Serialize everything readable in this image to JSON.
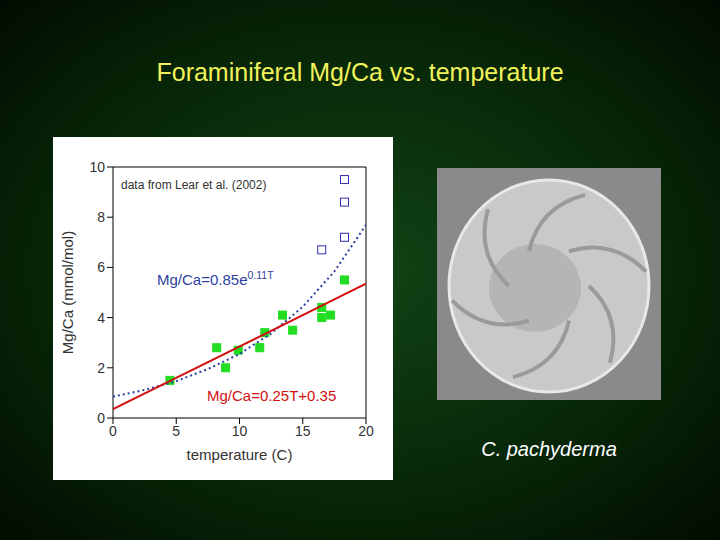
{
  "chart_data": {
    "type": "scatter",
    "title": "Foraminiferal Mg/Ca vs. temperature",
    "x_label": "temperature (C)",
    "y_label": "Mg/Ca (mmol/mol)",
    "annotations": [
      "data from Lear et al. (2002)"
    ],
    "xlim": [
      0,
      20
    ],
    "ylim": [
      0,
      10
    ],
    "xticks": [
      0,
      5,
      10,
      15,
      20
    ],
    "yticks": [
      0,
      2,
      4,
      6,
      8,
      10
    ],
    "grid": false,
    "series": [
      {
        "type": "scatter",
        "marker": "square",
        "color": "#22dd22",
        "x": [
          4.5,
          8.2,
          8.9,
          9.9,
          11.6,
          12.0,
          13.4,
          14.2,
          16.5,
          16.5,
          17.2,
          18.3
        ],
        "values": [
          1.5,
          2.8,
          2.0,
          2.7,
          2.8,
          3.4,
          4.1,
          3.5,
          4.4,
          4.0,
          4.1,
          5.5
        ]
      },
      {
        "type": "scatter",
        "marker": "open_square",
        "color": "#3030b0",
        "x": [
          18.3,
          18.3,
          18.3,
          16.5
        ],
        "values": [
          9.5,
          8.6,
          7.2,
          6.7
        ]
      },
      {
        "type": "line",
        "name": "Mg/Ca=0.85e0.11T",
        "color": "#2c3fa0",
        "line_style": "dotted",
        "x": [
          0,
          2.5,
          5,
          7.5,
          10,
          12.5,
          15,
          17.5,
          20
        ],
        "values": [
          0.85,
          1.12,
          1.47,
          1.95,
          2.55,
          3.37,
          4.43,
          5.84,
          7.69
        ]
      },
      {
        "type": "line",
        "name": "Mg/Ca=0.25T+0.35",
        "color": "#d01010",
        "line_style": "solid",
        "x": [
          0,
          20
        ],
        "values": [
          0.35,
          5.35
        ]
      }
    ]
  },
  "image": {
    "caption": "C. pachyderma"
  }
}
